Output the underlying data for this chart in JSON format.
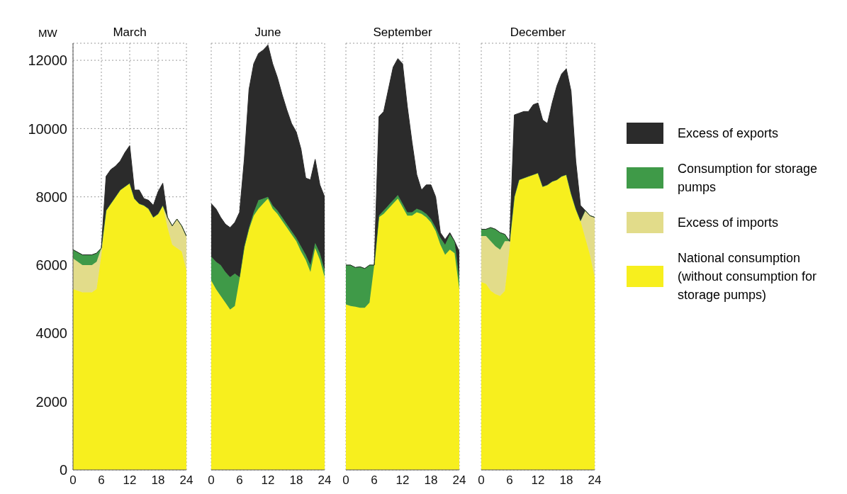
{
  "chart_data": [
    {
      "type": "area",
      "title": "March",
      "ylabel": "MW",
      "stacked": true,
      "grid": true,
      "x": [
        0,
        2,
        4,
        5,
        6,
        7,
        8,
        9,
        10,
        11,
        12,
        13,
        14,
        15,
        16,
        17,
        18,
        19,
        20,
        21,
        22,
        23,
        24
      ],
      "series": [
        {
          "color": "#f7ef1e",
          "values": [
            5300,
            5200,
            5200,
            5300,
            6300,
            7600,
            7800,
            8000,
            8200,
            8300,
            8400,
            7950,
            7800,
            7750,
            7650,
            7400,
            7500,
            7750,
            7100,
            6600,
            6500,
            6400,
            5850
          ]
        },
        {
          "color": "#e2dc8a",
          "values": [
            900,
            800,
            800,
            800,
            200,
            0,
            0,
            0,
            0,
            0,
            0,
            0,
            0,
            0,
            0,
            0,
            0,
            0,
            300,
            550,
            850,
            750,
            1000
          ]
        },
        {
          "color": "#3f9a48",
          "values": [
            250,
            300,
            300,
            250,
            0,
            0,
            0,
            0,
            0,
            0,
            0,
            0,
            0,
            0,
            0,
            0,
            0,
            0,
            0,
            0,
            0,
            0,
            0
          ]
        },
        {
          "color": "#2b2b2b",
          "values": [
            0,
            0,
            0,
            0,
            0,
            1000,
            1000,
            900,
            850,
            1000,
            1100,
            250,
            400,
            200,
            250,
            350,
            650,
            650,
            0,
            0,
            0,
            0,
            0
          ]
        }
      ],
      "xlim": [
        0,
        24
      ],
      "xticks": [
        0,
        6,
        12,
        18,
        24
      ],
      "ylim": [
        0,
        12500
      ],
      "yticks": [
        0,
        2000,
        4000,
        6000,
        8000,
        10000,
        12000
      ]
    },
    {
      "type": "area",
      "title": "June",
      "stacked": true,
      "grid": true,
      "tick_labels": "x",
      "x": [
        0,
        1,
        2,
        3,
        4,
        5,
        6,
        7,
        8,
        9,
        10,
        11,
        12,
        13,
        14,
        15,
        16,
        17,
        18,
        19,
        20,
        21,
        22,
        23,
        24
      ],
      "series": [
        {
          "color": "#f7ef1e",
          "values": [
            5550,
            5300,
            5100,
            4900,
            4700,
            4800,
            5600,
            6500,
            7050,
            7450,
            7650,
            7800,
            7950,
            7650,
            7500,
            7300,
            7100,
            6900,
            6700,
            6400,
            6150,
            5800,
            6500,
            6150,
            5650
          ]
        },
        {
          "color": "#3f9a48",
          "values": [
            700,
            800,
            900,
            900,
            950,
            950,
            50,
            50,
            50,
            100,
            250,
            150,
            50,
            100,
            100,
            100,
            100,
            100,
            100,
            150,
            150,
            200,
            150,
            200,
            200
          ]
        },
        {
          "color": "#2b2b2b",
          "values": [
            1550,
            1550,
            1400,
            1400,
            1450,
            1500,
            1900,
            2550,
            4050,
            4350,
            4300,
            4350,
            4450,
            4150,
            3900,
            3600,
            3350,
            3150,
            3100,
            2850,
            2250,
            2500,
            2450,
            2000,
            2150
          ]
        }
      ],
      "xlim": [
        0,
        24
      ],
      "xticks": [
        0,
        6,
        12,
        18,
        24
      ],
      "ylim": [
        0,
        12500
      ],
      "yticks": [
        0,
        2000,
        4000,
        6000,
        8000,
        10000,
        12000
      ]
    },
    {
      "type": "area",
      "title": "September",
      "stacked": true,
      "grid": true,
      "tick_labels": "x",
      "x": [
        0,
        1,
        2,
        3,
        4,
        5,
        6,
        7,
        8,
        9,
        10,
        11,
        12,
        13,
        14,
        15,
        16,
        17,
        18,
        19,
        20,
        21,
        22,
        23,
        24
      ],
      "series": [
        {
          "color": "#f7ef1e",
          "values": [
            4850,
            4800,
            4780,
            4750,
            4750,
            4900,
            6000,
            7400,
            7500,
            7650,
            7800,
            7950,
            7700,
            7450,
            7450,
            7550,
            7500,
            7400,
            7250,
            7000,
            6600,
            6300,
            6450,
            6350,
            5300
          ]
        },
        {
          "color": "#3f9a48",
          "values": [
            1150,
            1200,
            1150,
            1200,
            1150,
            1100,
            0,
            50,
            100,
            100,
            100,
            100,
            100,
            100,
            100,
            100,
            100,
            100,
            100,
            100,
            200,
            300,
            450,
            350,
            300
          ]
        },
        {
          "color": "#2b2b2b",
          "values": [
            0,
            0,
            0,
            0,
            0,
            0,
            0,
            2900,
            2900,
            3400,
            3900,
            4000,
            4100,
            3100,
            2050,
            1000,
            600,
            850,
            1000,
            900,
            150,
            150,
            50,
            0,
            800
          ]
        }
      ],
      "xlim": [
        0,
        24
      ],
      "xticks": [
        0,
        6,
        12,
        18,
        24
      ],
      "ylim": [
        0,
        12500
      ],
      "yticks": [
        0,
        2000,
        4000,
        6000,
        8000,
        10000,
        12000
      ]
    },
    {
      "type": "area",
      "title": "December",
      "stacked": true,
      "grid": true,
      "tick_labels": "x",
      "legend": "right",
      "x": [
        0,
        1,
        2,
        3,
        4,
        5,
        6,
        7,
        8,
        9,
        10,
        11,
        12,
        13,
        14,
        15,
        16,
        17,
        18,
        19,
        20,
        21,
        22,
        23,
        24
      ],
      "series": [
        {
          "name": "National consumption (without consumption for storage pumps)",
          "color": "#f7ef1e",
          "values": [
            5500,
            5450,
            5250,
            5150,
            5100,
            5250,
            6500,
            8000,
            8500,
            8550,
            8600,
            8650,
            8700,
            8300,
            8350,
            8450,
            8500,
            8600,
            8650,
            8100,
            7650,
            7300,
            6800,
            6300,
            5650
          ]
        },
        {
          "name": "Excess of imports",
          "color": "#e2dc8a",
          "values": [
            1350,
            1400,
            1450,
            1400,
            1350,
            1450,
            200,
            0,
            0,
            0,
            0,
            0,
            0,
            0,
            0,
            0,
            0,
            0,
            0,
            0,
            0,
            0,
            800,
            1150,
            1750
          ]
        },
        {
          "name": "Consumption for storage pumps",
          "color": "#3f9a48",
          "values": [
            200,
            200,
            400,
            500,
            500,
            200,
            0,
            0,
            0,
            0,
            0,
            0,
            0,
            0,
            0,
            0,
            0,
            0,
            0,
            0,
            0,
            0,
            0,
            0,
            0
          ]
        },
        {
          "name": "Excess of exports",
          "color": "#2b2b2b",
          "values": [
            0,
            0,
            0,
            0,
            0,
            0,
            0,
            2400,
            1950,
            1950,
            1900,
            2050,
            2050,
            1950,
            1800,
            2300,
            2750,
            3000,
            3100,
            3000,
            1400,
            450,
            0,
            0,
            0
          ]
        }
      ],
      "xlim": [
        0,
        24
      ],
      "xticks": [
        0,
        6,
        12,
        18,
        24
      ],
      "ylim": [
        0,
        12500
      ],
      "yticks": [
        0,
        2000,
        4000,
        6000,
        8000,
        10000,
        12000
      ]
    }
  ]
}
